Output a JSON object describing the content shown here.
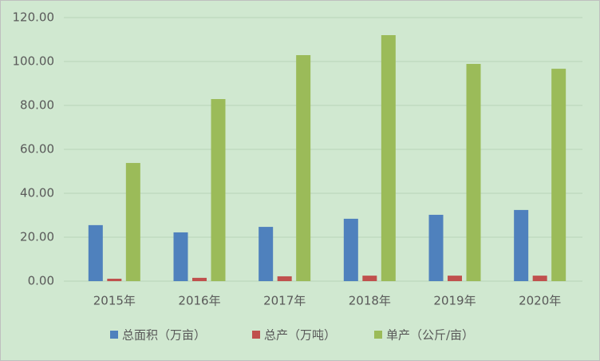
{
  "chart_data": {
    "type": "bar",
    "categories": [
      "2015年",
      "2016年",
      "2017年",
      "2018年",
      "2019年",
      "2020年"
    ],
    "series": [
      {
        "name": "总面积（万亩）",
        "color": "#4f81bd",
        "values": [
          25.5,
          22.2,
          24.7,
          28.4,
          30.2,
          32.4
        ]
      },
      {
        "name": "总产（万吨）",
        "color": "#c0504d",
        "values": [
          1.1,
          1.5,
          2.2,
          2.5,
          2.5,
          2.5
        ]
      },
      {
        "name": "单产（公斤/亩）",
        "color": "#9bbb59",
        "values": [
          53.8,
          82.9,
          102.9,
          112.0,
          98.9,
          96.7
        ]
      }
    ],
    "ylim": [
      0,
      120
    ],
    "yticks": [
      {
        "value": 0,
        "label": "0.00"
      },
      {
        "value": 20,
        "label": "20.00"
      },
      {
        "value": 40,
        "label": "40.00"
      },
      {
        "value": 60,
        "label": "60.00"
      },
      {
        "value": 80,
        "label": "80.00"
      },
      {
        "value": 100,
        "label": "100.00"
      },
      {
        "value": 120,
        "label": "120.00"
      }
    ],
    "grid": true,
    "legend": "bottom"
  }
}
